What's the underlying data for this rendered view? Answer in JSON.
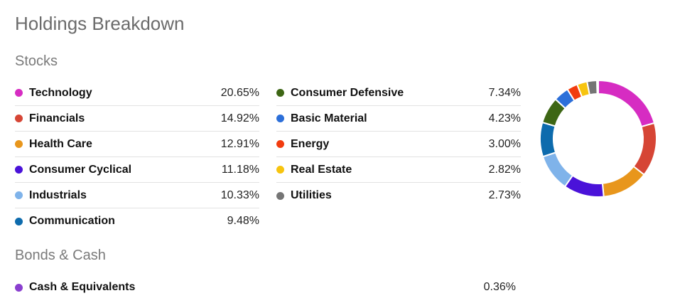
{
  "title": "Holdings Breakdown",
  "stocks_heading": "Stocks",
  "bonds_heading": "Bonds & Cash",
  "stocks_left": [
    {
      "label": "Technology",
      "value": "20.65%",
      "color": "#d62cc2"
    },
    {
      "label": "Financials",
      "value": "14.92%",
      "color": "#d64535"
    },
    {
      "label": "Health Care",
      "value": "12.91%",
      "color": "#e8961c"
    },
    {
      "label": "Consumer Cyclical",
      "value": "11.18%",
      "color": "#4a12d9"
    },
    {
      "label": "Industrials",
      "value": "10.33%",
      "color": "#7fb3ea"
    },
    {
      "label": "Communication",
      "value": "9.48%",
      "color": "#0d6bad"
    }
  ],
  "stocks_right": [
    {
      "label": "Consumer Defensive",
      "value": "7.34%",
      "color": "#3d6614"
    },
    {
      "label": "Basic Material",
      "value": "4.23%",
      "color": "#2c6fd9"
    },
    {
      "label": "Energy",
      "value": "3.00%",
      "color": "#f23c0f"
    },
    {
      "label": "Real Estate",
      "value": "2.82%",
      "color": "#f7c40f"
    },
    {
      "label": "Utilities",
      "value": "2.73%",
      "color": "#757575"
    }
  ],
  "bonds": [
    {
      "label": "Cash & Equivalents",
      "value": "0.36%",
      "color": "#8a3fcf"
    }
  ],
  "chart_data": {
    "type": "pie",
    "donut": true,
    "categories": [
      "Technology",
      "Financials",
      "Health Care",
      "Consumer Cyclical",
      "Industrials",
      "Communication",
      "Consumer Defensive",
      "Basic Material",
      "Energy",
      "Real Estate",
      "Utilities",
      "Cash & Equivalents"
    ],
    "values": [
      20.65,
      14.92,
      12.91,
      11.18,
      10.33,
      9.48,
      7.34,
      4.23,
      3.0,
      2.82,
      2.73,
      0.36
    ],
    "colors": [
      "#d62cc2",
      "#d64535",
      "#e8961c",
      "#4a12d9",
      "#7fb3ea",
      "#0d6bad",
      "#3d6614",
      "#2c6fd9",
      "#f23c0f",
      "#f7c40f",
      "#757575",
      "#8a3fcf"
    ]
  }
}
